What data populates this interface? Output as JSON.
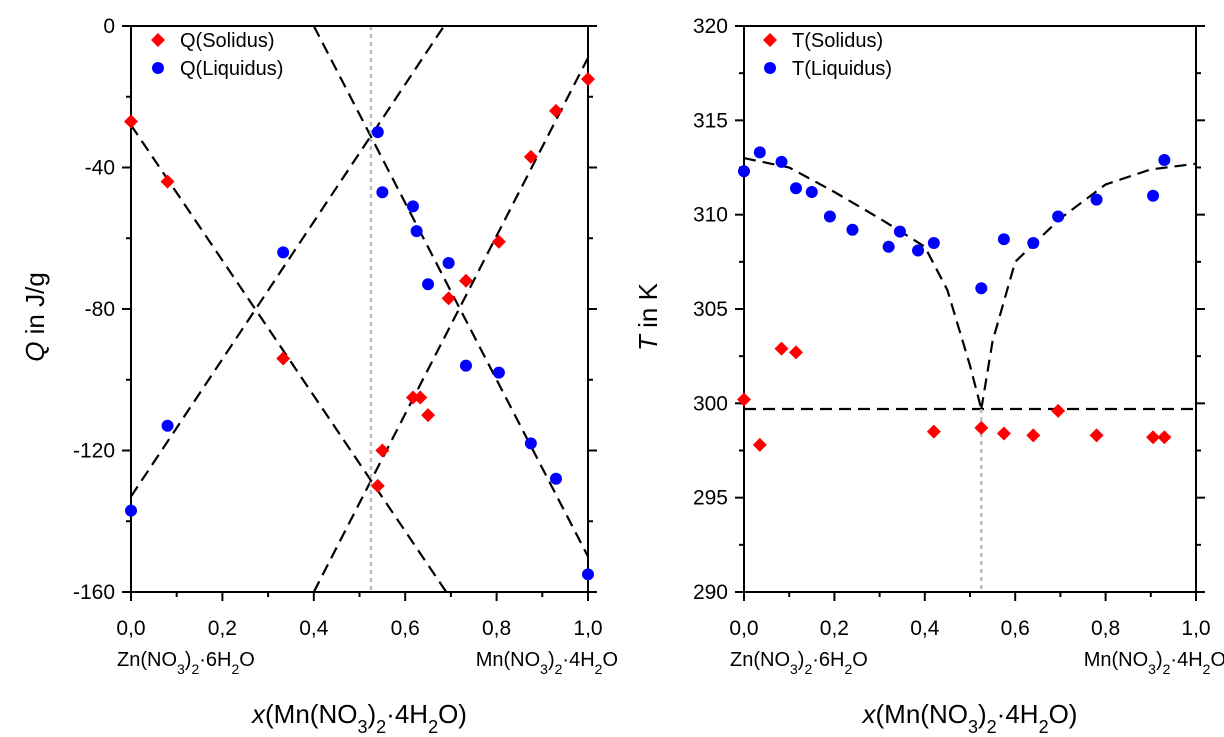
{
  "chart_data": [
    {
      "type": "scatter",
      "xlabel": "x(Mn(NO3)2·4H2O)",
      "ylabel": "Q in J/g",
      "xlim": [
        0,
        1
      ],
      "ylim": [
        -160,
        0
      ],
      "x_ticks": [
        "0,0",
        "0,2",
        "0,4",
        "0,6",
        "0,8",
        "1,0"
      ],
      "y_ticks": [
        "0",
        "-40",
        "-80",
        "-120",
        "-160"
      ],
      "end_labels": [
        "Zn(NO3)2·6H2O",
        "Mn(NO3)2·4H2O"
      ],
      "legend_position": "top-left",
      "series": [
        {
          "name": "Q(Solidus)",
          "marker": "diamond",
          "color": "#ff0000",
          "x": [
            0.0,
            0.08,
            0.333,
            0.54,
            0.55,
            0.617,
            0.633,
            0.65,
            0.695,
            0.733,
            0.805,
            0.875,
            0.93,
            1.0
          ],
          "y": [
            -27,
            -44,
            -94,
            -130,
            -120,
            -105,
            -105,
            -110,
            -77,
            -72,
            -61,
            -37,
            -24,
            -15
          ]
        },
        {
          "name": "Q(Liquidus)",
          "marker": "circle",
          "color": "#0000ff",
          "x": [
            0.0,
            0.08,
            0.333,
            0.54,
            0.55,
            0.617,
            0.625,
            0.65,
            0.695,
            0.733,
            0.805,
            0.875,
            0.93,
            1.0
          ],
          "y": [
            -137,
            -113,
            -64,
            -30,
            -47,
            -51,
            -58,
            -73,
            -67,
            -96,
            -98,
            -118,
            -128,
            -155
          ]
        }
      ],
      "reference_lines": [
        {
          "style": "dashed",
          "color": "#000000",
          "points": [
            [
              0,
              -28
            ],
            [
              0.69,
              -160
            ]
          ]
        },
        {
          "style": "dashed",
          "color": "#000000",
          "points": [
            [
              0,
              -133
            ],
            [
              0.685,
              0
            ]
          ]
        },
        {
          "style": "dashed",
          "color": "#000000",
          "points": [
            [
              0.4,
              -160
            ],
            [
              1,
              -9
            ]
          ]
        },
        {
          "style": "dashed",
          "color": "#000000",
          "points": [
            [
              0.4,
              0
            ],
            [
              1,
              -150
            ]
          ]
        },
        {
          "style": "dotted",
          "color": "#bbbbbb",
          "points": [
            [
              0.525,
              0
            ],
            [
              0.525,
              -160
            ]
          ]
        }
      ]
    },
    {
      "type": "scatter",
      "xlabel": "x(Mn(NO3)2·4H2O)",
      "ylabel": "T in K",
      "xlim": [
        0,
        1
      ],
      "ylim": [
        290,
        320
      ],
      "x_ticks": [
        "0,0",
        "0,2",
        "0,4",
        "0,6",
        "0,8",
        "1,0"
      ],
      "y_ticks": [
        "320",
        "315",
        "310",
        "305",
        "300",
        "295",
        "290"
      ],
      "end_labels": [
        "Zn(NO3)2·6H2O",
        "Mn(NO3)2·4H2O"
      ],
      "legend_position": "top-left",
      "series": [
        {
          "name": "T(Solidus)",
          "marker": "diamond",
          "color": "#ff0000",
          "x": [
            0.0,
            0.035,
            0.083,
            0.115,
            0.42,
            0.525,
            0.575,
            0.64,
            0.695,
            0.78,
            0.905,
            0.93
          ],
          "y": [
            300.2,
            297.8,
            302.9,
            302.7,
            298.5,
            298.7,
            298.4,
            298.3,
            299.6,
            298.3,
            298.2,
            298.2
          ]
        },
        {
          "name": "T(Liquidus)",
          "marker": "circle",
          "color": "#0000ff",
          "x": [
            0.0,
            0.035,
            0.083,
            0.115,
            0.15,
            0.19,
            0.24,
            0.32,
            0.345,
            0.385,
            0.42,
            0.525,
            0.575,
            0.64,
            0.695,
            0.78,
            0.905,
            0.93
          ],
          "y": [
            312.3,
            313.3,
            312.8,
            311.4,
            311.2,
            309.9,
            309.2,
            308.3,
            309.1,
            308.1,
            308.5,
            306.1,
            308.7,
            308.5,
            309.9,
            310.8,
            311.0,
            312.9
          ]
        }
      ],
      "reference_lines": [
        {
          "style": "dashed",
          "color": "#000000",
          "points": [
            [
              0,
              313
            ],
            [
              0.1,
              312.5
            ],
            [
              0.2,
              311.2
            ],
            [
              0.3,
              309.8
            ],
            [
              0.4,
              308.3
            ],
            [
              0.45,
              306
            ],
            [
              0.5,
              302
            ],
            [
              0.525,
              299.7
            ]
          ]
        },
        {
          "style": "dashed",
          "color": "#000000",
          "points": [
            [
              0.525,
              299.7
            ],
            [
              0.55,
              303.3
            ],
            [
              0.6,
              307.5
            ],
            [
              0.7,
              309.8
            ],
            [
              0.8,
              311.6
            ],
            [
              0.9,
              312.4
            ],
            [
              1,
              312.7
            ]
          ]
        },
        {
          "style": "dashed",
          "color": "#000000",
          "points": [
            [
              0,
              299.7
            ],
            [
              1,
              299.7
            ]
          ]
        },
        {
          "style": "dotted",
          "color": "#bbbbbb",
          "points": [
            [
              0.525,
              299.7
            ],
            [
              0.525,
              290
            ]
          ]
        }
      ]
    }
  ]
}
